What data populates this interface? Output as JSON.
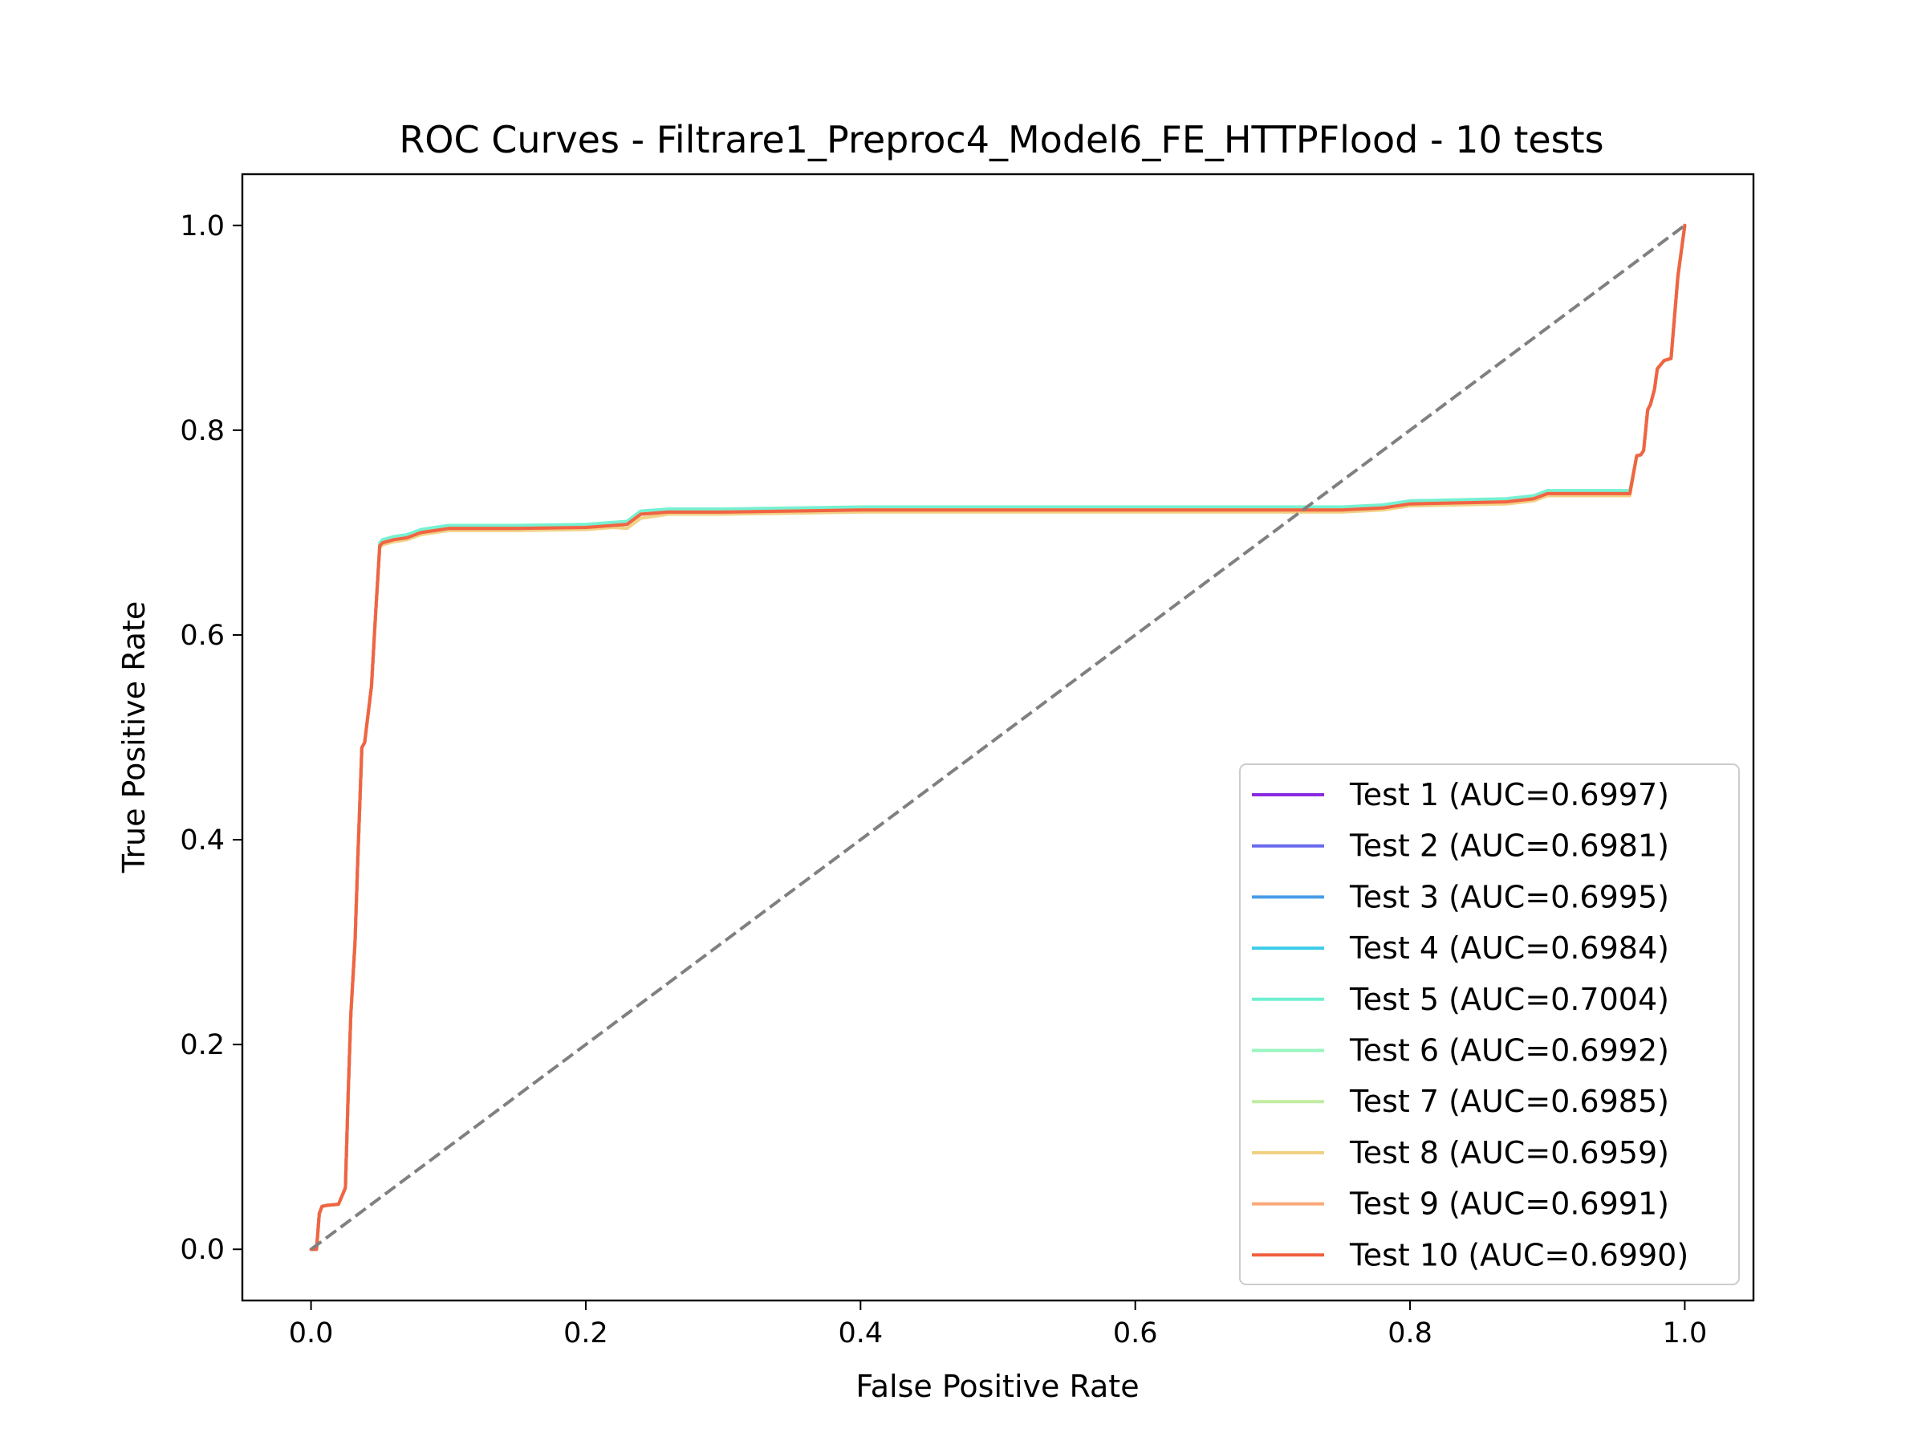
{
  "chart_data": {
    "type": "line",
    "title": "ROC Curves - Filtrare1_Preproc4_Model6_FE_HTTPFlood - 10 tests",
    "xlabel": "False Positive Rate",
    "ylabel": "True Positive Rate",
    "xlim": [
      -0.05,
      1.05
    ],
    "ylim": [
      -0.05,
      1.05
    ],
    "xticks": [
      0.0,
      0.2,
      0.4,
      0.6,
      0.8,
      1.0
    ],
    "xtick_labels": [
      "0.0",
      "0.2",
      "0.4",
      "0.6",
      "0.8",
      "1.0"
    ],
    "yticks": [
      0.0,
      0.2,
      0.4,
      0.6,
      0.8,
      1.0
    ],
    "ytick_labels": [
      "0.0",
      "0.2",
      "0.4",
      "0.6",
      "0.8",
      "1.0"
    ],
    "grid": false,
    "legend_position": "lower-right",
    "diagonal_reference": {
      "x": [
        0,
        1
      ],
      "y": [
        0,
        1
      ],
      "color": "#808080",
      "style": "dashed"
    },
    "series": [
      {
        "name": "Test 1 (AUC=0.6997)",
        "color": "#8a2be2",
        "x": [
          0.0,
          0.004,
          0.006,
          0.008,
          0.012,
          0.02,
          0.025,
          0.027,
          0.029,
          0.032,
          0.034,
          0.037,
          0.039,
          0.044,
          0.047,
          0.05,
          0.052,
          0.06,
          0.07,
          0.08,
          0.09,
          0.1,
          0.15,
          0.2,
          0.22,
          0.23,
          0.24,
          0.26,
          0.3,
          0.4,
          0.5,
          0.6,
          0.7,
          0.75,
          0.78,
          0.8,
          0.87,
          0.89,
          0.9,
          0.96,
          0.965,
          0.968,
          0.97,
          0.973,
          0.975,
          0.978,
          0.98,
          0.985,
          0.99,
          0.995,
          1.0
        ],
        "y": [
          0.0,
          0.0,
          0.035,
          0.042,
          0.043,
          0.044,
          0.06,
          0.15,
          0.23,
          0.3,
          0.38,
          0.49,
          0.495,
          0.55,
          0.62,
          0.687,
          0.69,
          0.693,
          0.695,
          0.7,
          0.702,
          0.704,
          0.704,
          0.705,
          0.707,
          0.708,
          0.718,
          0.72,
          0.72,
          0.722,
          0.722,
          0.722,
          0.722,
          0.722,
          0.724,
          0.728,
          0.73,
          0.733,
          0.738,
          0.738,
          0.775,
          0.776,
          0.78,
          0.82,
          0.825,
          0.84,
          0.86,
          0.868,
          0.87,
          0.95,
          1.0
        ]
      },
      {
        "name": "Test 2 (AUC=0.6981)",
        "color": "#6a6af0",
        "x": [
          0.0,
          0.004,
          0.006,
          0.008,
          0.012,
          0.02,
          0.025,
          0.027,
          0.029,
          0.032,
          0.034,
          0.037,
          0.039,
          0.044,
          0.047,
          0.05,
          0.052,
          0.06,
          0.07,
          0.08,
          0.09,
          0.1,
          0.15,
          0.2,
          0.22,
          0.23,
          0.24,
          0.26,
          0.3,
          0.4,
          0.5,
          0.6,
          0.7,
          0.75,
          0.78,
          0.8,
          0.87,
          0.89,
          0.9,
          0.96,
          0.965,
          0.968,
          0.97,
          0.973,
          0.975,
          0.978,
          0.98,
          0.985,
          0.99,
          0.995,
          1.0
        ],
        "y": [
          0.0,
          0.0,
          0.035,
          0.042,
          0.043,
          0.044,
          0.06,
          0.15,
          0.23,
          0.3,
          0.38,
          0.49,
          0.495,
          0.55,
          0.62,
          0.687,
          0.69,
          0.693,
          0.695,
          0.7,
          0.702,
          0.704,
          0.704,
          0.705,
          0.707,
          0.708,
          0.718,
          0.72,
          0.72,
          0.722,
          0.722,
          0.722,
          0.722,
          0.722,
          0.724,
          0.728,
          0.73,
          0.733,
          0.738,
          0.738,
          0.775,
          0.776,
          0.78,
          0.82,
          0.825,
          0.84,
          0.86,
          0.868,
          0.87,
          0.95,
          1.0
        ]
      },
      {
        "name": "Test 3 (AUC=0.6995)",
        "color": "#4a9de8",
        "x": [
          0.0,
          0.004,
          0.006,
          0.008,
          0.012,
          0.02,
          0.025,
          0.027,
          0.029,
          0.032,
          0.034,
          0.037,
          0.039,
          0.044,
          0.047,
          0.05,
          0.052,
          0.06,
          0.07,
          0.08,
          0.09,
          0.1,
          0.15,
          0.2,
          0.22,
          0.23,
          0.24,
          0.26,
          0.3,
          0.4,
          0.5,
          0.6,
          0.7,
          0.75,
          0.78,
          0.8,
          0.87,
          0.89,
          0.9,
          0.96,
          0.965,
          0.968,
          0.97,
          0.973,
          0.975,
          0.978,
          0.98,
          0.985,
          0.99,
          0.995,
          1.0
        ],
        "y": [
          0.0,
          0.0,
          0.035,
          0.042,
          0.043,
          0.044,
          0.06,
          0.15,
          0.23,
          0.3,
          0.38,
          0.49,
          0.495,
          0.55,
          0.62,
          0.687,
          0.69,
          0.693,
          0.695,
          0.7,
          0.702,
          0.704,
          0.704,
          0.705,
          0.707,
          0.708,
          0.718,
          0.72,
          0.72,
          0.722,
          0.722,
          0.722,
          0.722,
          0.722,
          0.724,
          0.728,
          0.73,
          0.733,
          0.738,
          0.738,
          0.775,
          0.776,
          0.78,
          0.82,
          0.825,
          0.84,
          0.86,
          0.868,
          0.87,
          0.95,
          1.0
        ]
      },
      {
        "name": "Test 4 (AUC=0.6984)",
        "color": "#3cccea",
        "x": [
          0.0,
          0.004,
          0.006,
          0.008,
          0.012,
          0.02,
          0.025,
          0.027,
          0.029,
          0.032,
          0.034,
          0.037,
          0.039,
          0.044,
          0.047,
          0.05,
          0.052,
          0.06,
          0.07,
          0.08,
          0.09,
          0.1,
          0.15,
          0.2,
          0.22,
          0.23,
          0.24,
          0.26,
          0.3,
          0.4,
          0.5,
          0.6,
          0.7,
          0.75,
          0.78,
          0.8,
          0.87,
          0.89,
          0.9,
          0.96,
          0.965,
          0.968,
          0.97,
          0.973,
          0.975,
          0.978,
          0.98,
          0.985,
          0.99,
          0.995,
          1.0
        ],
        "y": [
          0.0,
          0.0,
          0.035,
          0.042,
          0.043,
          0.044,
          0.06,
          0.15,
          0.23,
          0.3,
          0.38,
          0.49,
          0.495,
          0.55,
          0.62,
          0.687,
          0.69,
          0.693,
          0.695,
          0.7,
          0.702,
          0.704,
          0.704,
          0.705,
          0.707,
          0.708,
          0.718,
          0.72,
          0.72,
          0.722,
          0.722,
          0.722,
          0.722,
          0.722,
          0.724,
          0.728,
          0.73,
          0.733,
          0.738,
          0.738,
          0.775,
          0.776,
          0.78,
          0.82,
          0.825,
          0.84,
          0.86,
          0.868,
          0.87,
          0.95,
          1.0
        ]
      },
      {
        "name": "Test 5 (AUC=0.7004)",
        "color": "#6ef0d0",
        "x": [
          0.0,
          0.004,
          0.006,
          0.008,
          0.012,
          0.02,
          0.025,
          0.027,
          0.029,
          0.032,
          0.034,
          0.037,
          0.039,
          0.044,
          0.047,
          0.05,
          0.052,
          0.06,
          0.07,
          0.08,
          0.09,
          0.1,
          0.15,
          0.2,
          0.22,
          0.23,
          0.24,
          0.26,
          0.3,
          0.4,
          0.5,
          0.6,
          0.7,
          0.75,
          0.78,
          0.8,
          0.87,
          0.89,
          0.9,
          0.96,
          0.965,
          0.968,
          0.97,
          0.973,
          0.975,
          0.978,
          0.98,
          0.985,
          0.99,
          0.995,
          1.0
        ],
        "y": [
          0.0,
          0.0,
          0.035,
          0.042,
          0.043,
          0.044,
          0.06,
          0.15,
          0.23,
          0.3,
          0.38,
          0.49,
          0.495,
          0.55,
          0.62,
          0.69,
          0.693,
          0.696,
          0.698,
          0.703,
          0.705,
          0.707,
          0.707,
          0.708,
          0.71,
          0.711,
          0.721,
          0.723,
          0.723,
          0.725,
          0.725,
          0.725,
          0.725,
          0.725,
          0.727,
          0.731,
          0.733,
          0.736,
          0.741,
          0.741,
          0.775,
          0.776,
          0.78,
          0.82,
          0.825,
          0.84,
          0.86,
          0.868,
          0.87,
          0.95,
          1.0
        ]
      },
      {
        "name": "Test 6 (AUC=0.6992)",
        "color": "#98f5c0",
        "x": [
          0.0,
          0.004,
          0.006,
          0.008,
          0.012,
          0.02,
          0.025,
          0.027,
          0.029,
          0.032,
          0.034,
          0.037,
          0.039,
          0.044,
          0.047,
          0.05,
          0.052,
          0.06,
          0.07,
          0.08,
          0.09,
          0.1,
          0.15,
          0.2,
          0.22,
          0.23,
          0.24,
          0.26,
          0.3,
          0.4,
          0.5,
          0.6,
          0.7,
          0.75,
          0.78,
          0.8,
          0.87,
          0.89,
          0.9,
          0.96,
          0.965,
          0.968,
          0.97,
          0.973,
          0.975,
          0.978,
          0.98,
          0.985,
          0.99,
          0.995,
          1.0
        ],
        "y": [
          0.0,
          0.0,
          0.035,
          0.042,
          0.043,
          0.044,
          0.06,
          0.15,
          0.23,
          0.3,
          0.38,
          0.49,
          0.495,
          0.55,
          0.62,
          0.687,
          0.69,
          0.693,
          0.695,
          0.7,
          0.702,
          0.704,
          0.704,
          0.705,
          0.707,
          0.708,
          0.718,
          0.72,
          0.72,
          0.722,
          0.722,
          0.722,
          0.722,
          0.722,
          0.724,
          0.728,
          0.73,
          0.733,
          0.738,
          0.738,
          0.775,
          0.776,
          0.78,
          0.82,
          0.825,
          0.84,
          0.86,
          0.868,
          0.87,
          0.95,
          1.0
        ]
      },
      {
        "name": "Test 7 (AUC=0.6985)",
        "color": "#c0eca0",
        "x": [
          0.0,
          0.004,
          0.006,
          0.008,
          0.012,
          0.02,
          0.025,
          0.027,
          0.029,
          0.032,
          0.034,
          0.037,
          0.039,
          0.044,
          0.047,
          0.05,
          0.052,
          0.06,
          0.07,
          0.08,
          0.09,
          0.1,
          0.15,
          0.2,
          0.22,
          0.23,
          0.24,
          0.26,
          0.3,
          0.4,
          0.5,
          0.6,
          0.7,
          0.75,
          0.78,
          0.8,
          0.87,
          0.89,
          0.9,
          0.96,
          0.965,
          0.968,
          0.97,
          0.973,
          0.975,
          0.978,
          0.98,
          0.985,
          0.99,
          0.995,
          1.0
        ],
        "y": [
          0.0,
          0.0,
          0.035,
          0.042,
          0.043,
          0.044,
          0.06,
          0.15,
          0.23,
          0.3,
          0.38,
          0.49,
          0.495,
          0.55,
          0.62,
          0.687,
          0.69,
          0.693,
          0.695,
          0.7,
          0.702,
          0.704,
          0.704,
          0.705,
          0.707,
          0.708,
          0.718,
          0.72,
          0.72,
          0.722,
          0.722,
          0.722,
          0.722,
          0.722,
          0.724,
          0.728,
          0.73,
          0.733,
          0.738,
          0.738,
          0.775,
          0.776,
          0.78,
          0.82,
          0.825,
          0.84,
          0.86,
          0.868,
          0.87,
          0.95,
          1.0
        ]
      },
      {
        "name": "Test 8 (AUC=0.6959)",
        "color": "#f0d080",
        "x": [
          0.0,
          0.004,
          0.006,
          0.008,
          0.012,
          0.02,
          0.025,
          0.027,
          0.029,
          0.032,
          0.034,
          0.037,
          0.039,
          0.044,
          0.047,
          0.05,
          0.052,
          0.06,
          0.07,
          0.08,
          0.09,
          0.1,
          0.15,
          0.2,
          0.22,
          0.23,
          0.24,
          0.26,
          0.3,
          0.4,
          0.5,
          0.6,
          0.7,
          0.75,
          0.78,
          0.8,
          0.87,
          0.89,
          0.9,
          0.96,
          0.965,
          0.968,
          0.97,
          0.973,
          0.975,
          0.978,
          0.98,
          0.985,
          0.99,
          0.995,
          1.0
        ],
        "y": [
          0.0,
          0.0,
          0.035,
          0.042,
          0.043,
          0.044,
          0.06,
          0.15,
          0.23,
          0.3,
          0.38,
          0.49,
          0.495,
          0.55,
          0.62,
          0.685,
          0.688,
          0.691,
          0.693,
          0.698,
          0.7,
          0.702,
          0.702,
          0.703,
          0.705,
          0.704,
          0.714,
          0.718,
          0.718,
          0.72,
          0.72,
          0.72,
          0.72,
          0.72,
          0.722,
          0.726,
          0.728,
          0.731,
          0.736,
          0.736,
          0.775,
          0.776,
          0.78,
          0.82,
          0.825,
          0.84,
          0.86,
          0.868,
          0.87,
          0.95,
          1.0
        ]
      },
      {
        "name": "Test 9 (AUC=0.6991)",
        "color": "#f8a878",
        "x": [
          0.0,
          0.004,
          0.006,
          0.008,
          0.012,
          0.02,
          0.025,
          0.027,
          0.029,
          0.032,
          0.034,
          0.037,
          0.039,
          0.044,
          0.047,
          0.05,
          0.052,
          0.06,
          0.07,
          0.08,
          0.09,
          0.1,
          0.15,
          0.2,
          0.22,
          0.23,
          0.24,
          0.26,
          0.3,
          0.4,
          0.5,
          0.6,
          0.7,
          0.75,
          0.78,
          0.8,
          0.87,
          0.89,
          0.9,
          0.96,
          0.965,
          0.968,
          0.97,
          0.973,
          0.975,
          0.978,
          0.98,
          0.985,
          0.99,
          0.995,
          1.0
        ],
        "y": [
          0.0,
          0.0,
          0.035,
          0.042,
          0.043,
          0.044,
          0.06,
          0.15,
          0.23,
          0.3,
          0.38,
          0.49,
          0.495,
          0.55,
          0.62,
          0.687,
          0.69,
          0.693,
          0.695,
          0.7,
          0.702,
          0.704,
          0.704,
          0.705,
          0.707,
          0.708,
          0.718,
          0.72,
          0.72,
          0.722,
          0.722,
          0.722,
          0.722,
          0.722,
          0.724,
          0.728,
          0.73,
          0.733,
          0.738,
          0.738,
          0.775,
          0.776,
          0.78,
          0.82,
          0.825,
          0.84,
          0.86,
          0.868,
          0.87,
          0.95,
          1.0
        ]
      },
      {
        "name": "Test 10 (AUC=0.6990)",
        "color": "#f06040",
        "x": [
          0.0,
          0.004,
          0.006,
          0.008,
          0.012,
          0.02,
          0.025,
          0.027,
          0.029,
          0.032,
          0.034,
          0.037,
          0.039,
          0.044,
          0.047,
          0.05,
          0.052,
          0.06,
          0.07,
          0.08,
          0.09,
          0.1,
          0.15,
          0.2,
          0.22,
          0.23,
          0.24,
          0.26,
          0.3,
          0.4,
          0.5,
          0.6,
          0.7,
          0.75,
          0.78,
          0.8,
          0.87,
          0.89,
          0.9,
          0.96,
          0.965,
          0.968,
          0.97,
          0.973,
          0.975,
          0.978,
          0.98,
          0.985,
          0.99,
          0.995,
          1.0
        ],
        "y": [
          0.0,
          0.0,
          0.035,
          0.042,
          0.043,
          0.044,
          0.06,
          0.15,
          0.23,
          0.3,
          0.38,
          0.49,
          0.495,
          0.55,
          0.62,
          0.687,
          0.69,
          0.693,
          0.695,
          0.7,
          0.702,
          0.704,
          0.704,
          0.705,
          0.707,
          0.708,
          0.718,
          0.72,
          0.72,
          0.722,
          0.722,
          0.722,
          0.722,
          0.722,
          0.724,
          0.728,
          0.73,
          0.733,
          0.738,
          0.738,
          0.775,
          0.776,
          0.78,
          0.82,
          0.825,
          0.84,
          0.86,
          0.868,
          0.87,
          0.95,
          1.0
        ]
      }
    ]
  }
}
